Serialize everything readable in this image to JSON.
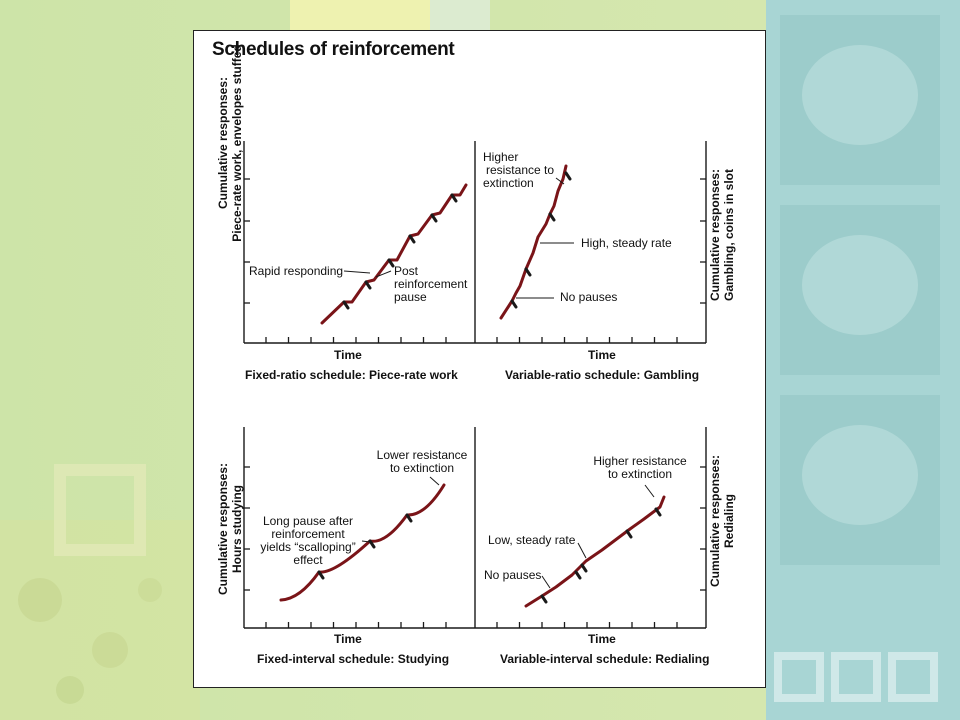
{
  "slide": {
    "title": "Schedules of reinforcement",
    "colors": {
      "background_left": "#cfe3a6",
      "background_right": "#a9d6d6",
      "curve": "#7a1418",
      "ink": "#1a1a1a"
    }
  },
  "panels": {
    "fixed_ratio": {
      "xlabel": "Time",
      "ylabel_line1": "Cumulative responses:",
      "ylabel_line2": "Piece-rate work, envelopes stuffed",
      "caption": "Fixed-ratio schedule: Piece-rate work",
      "annotations": {
        "rapid": "Rapid responding",
        "post_1": "Post",
        "post_2": "reinforcement",
        "post_3": "pause"
      }
    },
    "variable_ratio": {
      "xlabel": "Time",
      "ylabel_line1": "Cumulative responses:",
      "ylabel_line2": "Gambling, coins in slot",
      "caption": "Variable-ratio schedule: Gambling",
      "annotations": {
        "higher_1": "Higher",
        "higher_2": "resistance to",
        "higher_3": "extinction",
        "steady": "High, steady rate",
        "nopauses": "No pauses"
      }
    },
    "fixed_interval": {
      "xlabel": "Time",
      "ylabel_line1": "Cumulative responses:",
      "ylabel_line2": "Hours studying",
      "caption": "Fixed-interval schedule: Studying",
      "annotations": {
        "lower_1": "Lower resistance",
        "lower_2": "to extinction",
        "long_1": "Long pause after",
        "long_2": "reinforcement",
        "long_3": "yields “scalloping”",
        "long_4": "effect"
      }
    },
    "variable_interval": {
      "xlabel": "Time",
      "ylabel_line1": "Cumulative responses:",
      "ylabel_line2": "Redialing",
      "caption": "Variable-interval schedule: Redialing",
      "annotations": {
        "higher_1": "Higher resistance",
        "higher_2": "to extinction",
        "steady": "Low, steady rate",
        "nopauses": "No pauses"
      }
    }
  }
}
